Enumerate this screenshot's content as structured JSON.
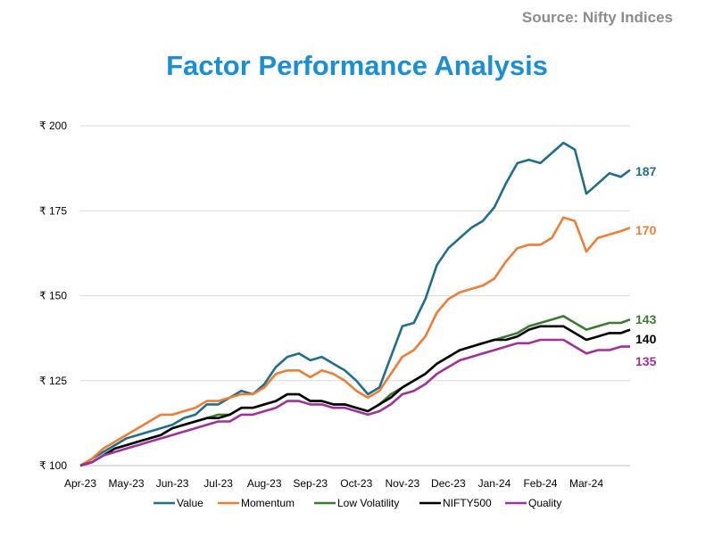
{
  "source": "Source: Nifty Indices",
  "title": "Factor Performance Analysis",
  "chart_data": {
    "type": "line",
    "title": "Factor Performance Analysis",
    "xlabel": "",
    "ylabel": "",
    "ylim": [
      100,
      200
    ],
    "yticks": [
      "₹ 100",
      "₹ 125",
      "₹ 150",
      "₹ 175",
      "₹ 200"
    ],
    "ytick_values": [
      100,
      125,
      150,
      175,
      200
    ],
    "x_tick_labels": [
      "Apr-23",
      "May-23",
      "Jun-23",
      "Jul-23",
      "Aug-23",
      "Sep-23",
      "Oct-23",
      "Nov-23",
      "Dec-23",
      "Jan-24",
      "Feb-24",
      "Mar-24"
    ],
    "grid": true,
    "legend_position": "bottom",
    "x": [
      0,
      0.25,
      0.5,
      0.75,
      1.0,
      1.25,
      1.5,
      1.75,
      2.0,
      2.25,
      2.5,
      2.75,
      3.0,
      3.25,
      3.5,
      3.75,
      4.0,
      4.25,
      4.5,
      4.75,
      5.0,
      5.25,
      5.5,
      5.75,
      6.0,
      6.25,
      6.5,
      6.75,
      7.0,
      7.25,
      7.5,
      7.75,
      8.0,
      8.25,
      8.5,
      8.75,
      9.0,
      9.25,
      9.5,
      9.75,
      10.0,
      10.25,
      10.5,
      10.75,
      11.0,
      11.25,
      11.5,
      11.75,
      11.95
    ],
    "series": [
      {
        "name": "Value",
        "color": "#1f6e8c",
        "end_label": "187",
        "values": [
          100,
          102,
          104,
          106,
          108,
          109,
          110,
          111,
          112,
          114,
          115,
          118,
          118,
          120,
          122,
          121,
          124,
          129,
          132,
          133,
          131,
          132,
          130,
          128,
          125,
          121,
          123,
          132,
          141,
          142,
          149,
          159,
          164,
          167,
          170,
          172,
          176,
          183,
          189,
          190,
          189,
          192,
          195,
          193,
          180,
          183,
          186,
          185,
          187
        ]
      },
      {
        "name": "Momentum",
        "color": "#ee7d35",
        "end_label": "170",
        "values": [
          100,
          102,
          105,
          107,
          109,
          111,
          113,
          115,
          115,
          116,
          117,
          119,
          119,
          120,
          121,
          121,
          123,
          127,
          128,
          128,
          126,
          128,
          127,
          125,
          122,
          120,
          122,
          127,
          132,
          134,
          138,
          145,
          149,
          151,
          152,
          153,
          155,
          160,
          164,
          165,
          165,
          167,
          173,
          172,
          163,
          167,
          168,
          169,
          170
        ]
      },
      {
        "name": "Low Volatility",
        "color": "#3a7d2e",
        "end_label": "143",
        "values": [
          100,
          101,
          103,
          105,
          106,
          107,
          108,
          109,
          111,
          112,
          113,
          114,
          115,
          115,
          117,
          117,
          118,
          119,
          121,
          121,
          119,
          119,
          118,
          118,
          117,
          116,
          118,
          121,
          123,
          125,
          127,
          130,
          132,
          134,
          135,
          136,
          137,
          138,
          139,
          141,
          142,
          143,
          144,
          142,
          140,
          141,
          142,
          142,
          143
        ]
      },
      {
        "name": "NIFTY500",
        "color": "#000000",
        "end_label": "140",
        "values": [
          100,
          101,
          103,
          105,
          106,
          107,
          108,
          109,
          111,
          112,
          113,
          114,
          114,
          115,
          117,
          117,
          118,
          119,
          121,
          121,
          119,
          119,
          118,
          118,
          117,
          116,
          118,
          120,
          123,
          125,
          127,
          130,
          132,
          134,
          135,
          136,
          137,
          137,
          138,
          140,
          141,
          141,
          141,
          139,
          137,
          138,
          139,
          139,
          140
        ]
      },
      {
        "name": "Quality",
        "color": "#a0309c",
        "end_label": "135",
        "values": [
          100,
          101,
          103,
          104,
          105,
          106,
          107,
          108,
          109,
          110,
          111,
          112,
          113,
          113,
          115,
          115,
          116,
          117,
          119,
          119,
          118,
          118,
          117,
          117,
          116,
          115,
          116,
          118,
          121,
          122,
          124,
          127,
          129,
          131,
          132,
          133,
          134,
          135,
          136,
          136,
          137,
          137,
          137,
          135,
          133,
          134,
          134,
          135,
          135
        ]
      }
    ]
  }
}
